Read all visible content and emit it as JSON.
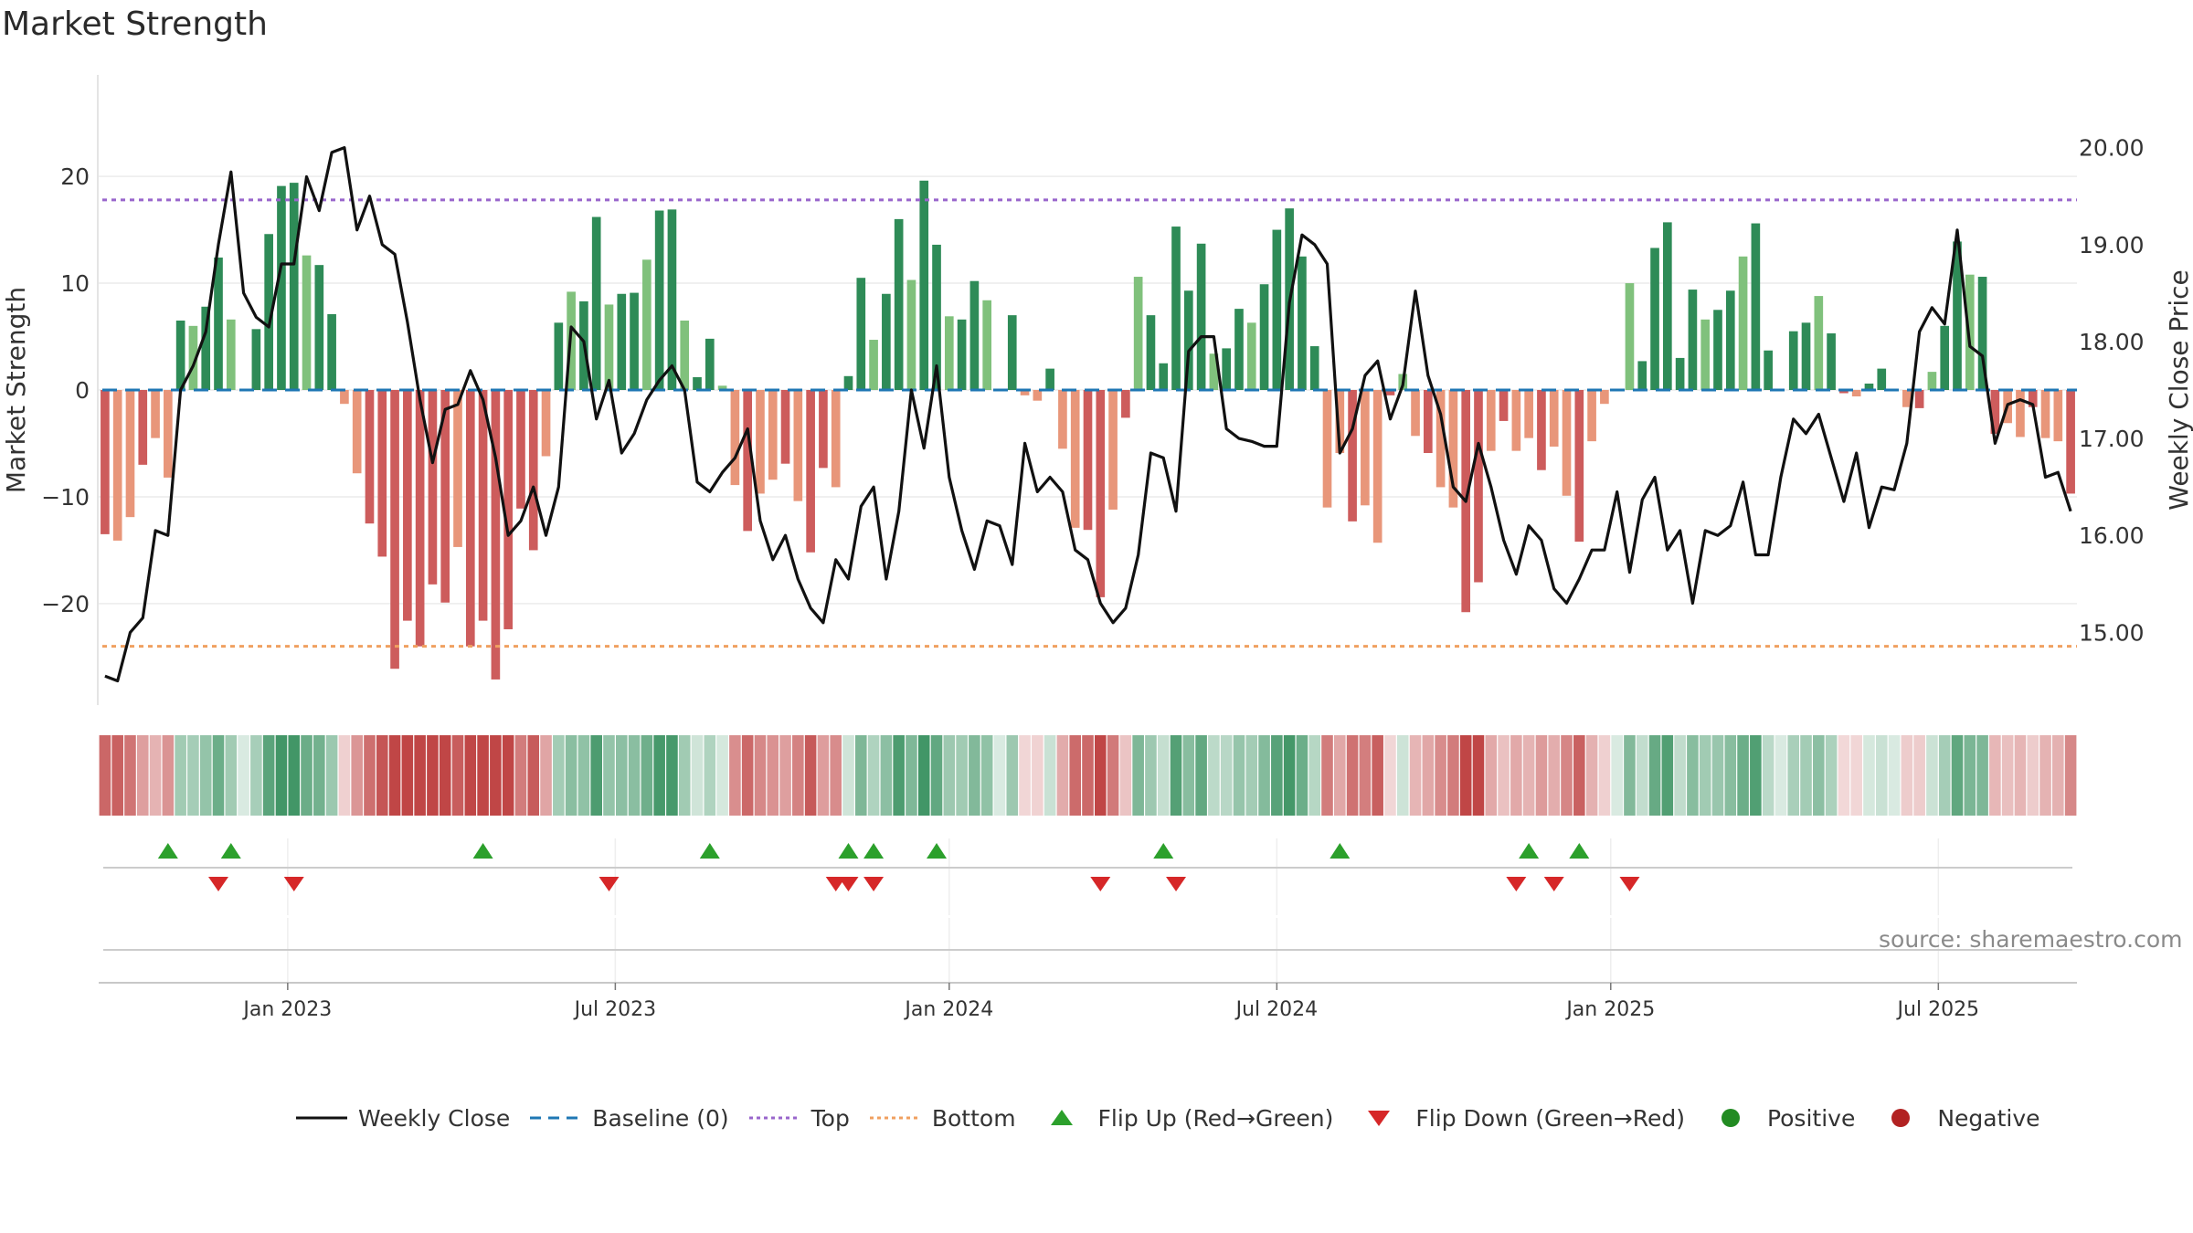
{
  "chart_title": "Market Strength",
  "source_note": "source: sharemaestro.com",
  "legend": {
    "weekly_close": "Weekly Close",
    "baseline": "Baseline (0)",
    "top": "Top",
    "bottom": "Bottom",
    "flip_up": "Flip Up (Red→Green)",
    "flip_down": "Flip Down (Green→Red)",
    "positive": "Positive",
    "negative": "Negative"
  },
  "colors": {
    "strong_green": "#2e8b57",
    "light_green": "#80c17c",
    "strong_red": "#cd5c5c",
    "light_red": "#e8967a",
    "close_line": "#111111",
    "baseline": "#1f77b4",
    "top_line": "#9966cc",
    "bottom_line": "#f0a060",
    "flip_up": "#2ca02c",
    "flip_down": "#d62728",
    "positive_dot": "#228b22",
    "negative_dot": "#b22222"
  },
  "chart_data": {
    "type": "bar+line",
    "title": "Market Strength",
    "ylabel_left": "Market Strength",
    "ylabel_right": "Weekly Close Price",
    "left_ylim": [
      -29.5,
      29.5
    ],
    "right_ylim": [
      14.25,
      20.75
    ],
    "left_ticks": [
      20,
      10,
      0,
      -10,
      -20
    ],
    "left_tick_labels": [
      "20",
      "10",
      "0",
      "−10",
      "−20"
    ],
    "right_ticks": [
      20.0,
      19.0,
      18.0,
      17.0,
      16.0,
      15.0
    ],
    "right_tick_labels": [
      "20.00",
      "19.00",
      "18.00",
      "17.00",
      "16.00",
      "15.00"
    ],
    "top_threshold": 17.8,
    "bottom_threshold": -24.0,
    "x_ticks": [
      {
        "week": 14.5,
        "label": "Jan 2023"
      },
      {
        "week": 40.5,
        "label": "Jul 2023"
      },
      {
        "week": 67.0,
        "label": "Jan 2024"
      },
      {
        "week": 93.0,
        "label": "Jul 2024"
      },
      {
        "week": 119.5,
        "label": "Jan 2025"
      },
      {
        "week": 145.5,
        "label": "Jul 2025"
      }
    ],
    "week_count": 157,
    "market_strength": [
      -13.5,
      -14.1,
      -11.9,
      -7.0,
      -4.5,
      -8.2,
      6.5,
      6.0,
      7.8,
      12.4,
      6.6,
      0.0,
      5.7,
      14.6,
      19.1,
      19.4,
      12.6,
      11.7,
      7.1,
      -1.3,
      -7.8,
      -12.5,
      -15.6,
      -26.1,
      -21.6,
      -24.0,
      -18.2,
      -19.9,
      -14.7,
      -24.0,
      -21.6,
      -27.1,
      -22.4,
      -11.1,
      -15.0,
      -6.2,
      6.3,
      9.2,
      8.3,
      16.2,
      8.0,
      9.0,
      9.1,
      12.2,
      16.8,
      16.9,
      6.5,
      1.2,
      4.8,
      0.4,
      -8.9,
      -13.2,
      -9.7,
      -8.4,
      -6.9,
      -10.4,
      -15.2,
      -7.3,
      -9.1,
      1.3,
      10.5,
      4.7,
      9.0,
      16.0,
      10.3,
      19.6,
      13.6,
      6.9,
      6.6,
      10.2,
      8.4,
      0.0,
      7.0,
      -0.5,
      -1.0,
      2.0,
      -5.5,
      -12.9,
      -13.1,
      -19.4,
      -11.2,
      -2.6,
      10.6,
      7.0,
      2.5,
      15.3,
      9.3,
      13.7,
      3.4,
      3.9,
      7.6,
      6.3,
      9.9,
      15.0,
      17.0,
      12.5,
      4.1,
      -11.0,
      -5.9,
      -12.3,
      -10.8,
      -14.3,
      -0.5,
      1.5,
      -4.3,
      -5.9,
      -9.1,
      -11.0,
      -20.8,
      -18.0,
      -5.7,
      -2.9,
      -5.7,
      -4.5,
      -7.5,
      -5.3,
      -9.9,
      -14.2,
      -4.8,
      -1.3,
      0.0,
      10.0,
      2.7,
      13.3,
      15.7,
      3.0,
      9.4,
      6.6,
      7.5,
      9.3,
      12.5,
      15.6,
      3.7,
      0.0,
      5.5,
      6.3,
      8.8,
      5.3,
      -0.3,
      -0.6,
      0.6,
      2.0,
      0.0,
      -1.6,
      -1.7,
      1.7,
      6.0,
      13.9,
      10.8,
      10.6,
      -4.1,
      -3.1,
      -4.4,
      -1.6,
      -4.5,
      -4.8,
      -9.7
    ],
    "weekly_close": [
      14.55,
      14.5,
      15.0,
      15.15,
      16.05,
      16.0,
      17.5,
      17.75,
      18.1,
      19.0,
      19.75,
      18.5,
      18.25,
      18.15,
      18.8,
      18.8,
      19.7,
      19.35,
      19.95,
      20.0,
      19.15,
      19.5,
      19.0,
      18.9,
      18.2,
      17.4,
      16.75,
      17.3,
      17.35,
      17.7,
      17.4,
      16.8,
      16.0,
      16.15,
      16.5,
      16.0,
      16.5,
      18.15,
      18.0,
      17.2,
      17.6,
      16.85,
      17.05,
      17.4,
      17.6,
      17.75,
      17.5,
      16.55,
      16.45,
      16.65,
      16.8,
      17.1,
      16.15,
      15.75,
      16.0,
      15.55,
      15.25,
      15.1,
      15.75,
      15.55,
      16.3,
      16.5,
      15.55,
      16.25,
      17.5,
      16.9,
      17.75,
      16.6,
      16.05,
      15.65,
      16.15,
      16.1,
      15.7,
      16.95,
      16.45,
      16.6,
      16.45,
      15.85,
      15.75,
      15.3,
      15.1,
      15.25,
      15.8,
      16.85,
      16.8,
      16.25,
      17.9,
      18.05,
      18.05,
      17.1,
      17.0,
      16.97,
      16.92,
      16.92,
      18.4,
      19.1,
      19.0,
      18.8,
      16.85,
      17.1,
      17.65,
      17.8,
      17.2,
      17.55,
      18.52,
      17.65,
      17.25,
      16.5,
      16.35,
      16.95,
      16.5,
      15.95,
      15.6,
      16.1,
      15.95,
      15.45,
      15.3,
      15.55,
      15.85,
      15.85,
      16.45,
      15.62,
      16.37,
      16.6,
      15.85,
      16.05,
      15.3,
      16.05,
      16.0,
      16.1,
      16.55,
      15.8,
      15.8,
      16.6,
      17.2,
      17.05,
      17.25,
      16.8,
      16.35,
      16.85,
      16.08,
      16.5,
      16.47,
      16.95,
      18.1,
      18.35,
      18.18,
      19.15,
      17.95,
      17.85,
      16.95,
      17.35,
      17.4,
      17.35,
      16.6,
      16.65,
      16.25
    ],
    "flip_up_weeks": [
      5,
      10,
      30,
      48,
      59,
      61,
      66,
      84,
      98,
      113,
      117
    ],
    "flip_down_weeks": [
      9,
      15,
      40,
      58,
      59,
      61,
      79,
      85,
      112,
      115,
      121
    ]
  }
}
